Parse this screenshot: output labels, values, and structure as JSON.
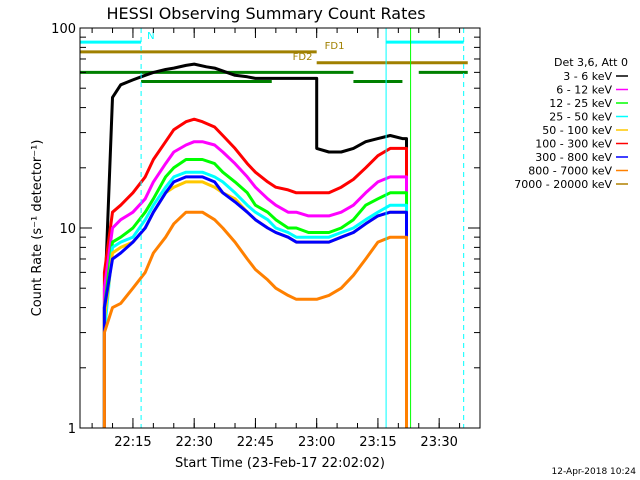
{
  "chart_data": {
    "type": "line",
    "title": "HESSI Observing Summary Count Rates",
    "xlabel": "Start Time (23-Feb-17 22:02:02)",
    "ylabel": "Count Rate (s⁻¹ detector⁻¹)",
    "y_scale": "log",
    "ylim": [
      1,
      100
    ],
    "y_ticks": [
      {
        "value": 1,
        "label": "1"
      },
      {
        "value": 10,
        "label": "10"
      },
      {
        "value": 100,
        "label": "100"
      }
    ],
    "xlim": [
      "22:02:02",
      "23:40:00"
    ],
    "x_ticks": [
      {
        "time": "22:15",
        "label": "22:15"
      },
      {
        "time": "22:30",
        "label": "22:30"
      },
      {
        "time": "22:45",
        "label": "22:45"
      },
      {
        "time": "23:00",
        "label": "23:00"
      },
      {
        "time": "23:15",
        "label": "23:15"
      },
      {
        "time": "23:30",
        "label": "23:30"
      }
    ],
    "legend_header": "Det 3,6, Att 0",
    "legend_placement": "right",
    "series": [
      {
        "name": "3 - 6 keV",
        "color": "#000000",
        "points": [
          [
            "22:08",
            1
          ],
          [
            "22:08",
            4
          ],
          [
            "22:10",
            45
          ],
          [
            "22:12",
            52
          ],
          [
            "22:15",
            55
          ],
          [
            "22:18",
            58
          ],
          [
            "22:20",
            60
          ],
          [
            "22:23",
            62
          ],
          [
            "22:25",
            63
          ],
          [
            "22:28",
            65
          ],
          [
            "22:30",
            66
          ],
          [
            "22:33",
            64
          ],
          [
            "22:35",
            63
          ],
          [
            "22:38",
            60
          ],
          [
            "22:40",
            58
          ],
          [
            "22:43",
            57
          ],
          [
            "22:45",
            56
          ],
          [
            "22:48",
            56
          ],
          [
            "22:50",
            56
          ],
          [
            "22:53",
            56
          ],
          [
            "22:55",
            56
          ],
          [
            "22:58",
            56
          ],
          [
            "23:00",
            56
          ],
          [
            "23:00",
            25
          ],
          [
            "23:03",
            24
          ],
          [
            "23:06",
            24
          ],
          [
            "23:09",
            25
          ],
          [
            "23:12",
            27
          ],
          [
            "23:15",
            28
          ],
          [
            "23:18",
            29
          ],
          [
            "23:21",
            28
          ],
          [
            "23:22",
            28
          ],
          [
            "23:22",
            1
          ]
        ]
      },
      {
        "name": "6 - 12 keV",
        "color": "#ff00ff",
        "points": [
          [
            "22:08",
            1
          ],
          [
            "22:08",
            5
          ],
          [
            "22:10",
            10
          ],
          [
            "22:12",
            11
          ],
          [
            "22:15",
            12
          ],
          [
            "22:18",
            14
          ],
          [
            "22:20",
            17
          ],
          [
            "22:23",
            21
          ],
          [
            "22:25",
            24
          ],
          [
            "22:28",
            26
          ],
          [
            "22:30",
            27
          ],
          [
            "22:32",
            27
          ],
          [
            "22:35",
            26
          ],
          [
            "22:37",
            24
          ],
          [
            "22:40",
            21
          ],
          [
            "22:43",
            18
          ],
          [
            "22:45",
            16
          ],
          [
            "22:48",
            14
          ],
          [
            "22:50",
            13
          ],
          [
            "22:53",
            12
          ],
          [
            "22:55",
            12
          ],
          [
            "22:58",
            11.5
          ],
          [
            "23:00",
            11.5
          ],
          [
            "23:03",
            11.5
          ],
          [
            "23:06",
            12
          ],
          [
            "23:09",
            13
          ],
          [
            "23:12",
            15
          ],
          [
            "23:15",
            17
          ],
          [
            "23:18",
            18
          ],
          [
            "23:21",
            18
          ],
          [
            "23:22",
            18
          ],
          [
            "23:22",
            1
          ]
        ]
      },
      {
        "name": "12 - 25 keV",
        "color": "#00ff00",
        "points": [
          [
            "22:08",
            1
          ],
          [
            "22:08",
            4
          ],
          [
            "22:10",
            8.5
          ],
          [
            "22:12",
            9
          ],
          [
            "22:15",
            10
          ],
          [
            "22:18",
            12
          ],
          [
            "22:20",
            14
          ],
          [
            "22:23",
            18
          ],
          [
            "22:25",
            20
          ],
          [
            "22:28",
            22
          ],
          [
            "22:30",
            22
          ],
          [
            "22:32",
            22
          ],
          [
            "22:35",
            21
          ],
          [
            "22:37",
            19
          ],
          [
            "22:40",
            17
          ],
          [
            "22:43",
            15
          ],
          [
            "22:45",
            13
          ],
          [
            "22:48",
            12
          ],
          [
            "22:50",
            11
          ],
          [
            "22:53",
            10
          ],
          [
            "22:55",
            10
          ],
          [
            "22:58",
            9.5
          ],
          [
            "23:00",
            9.5
          ],
          [
            "23:03",
            9.5
          ],
          [
            "23:06",
            10
          ],
          [
            "23:09",
            11
          ],
          [
            "23:12",
            13
          ],
          [
            "23:15",
            14
          ],
          [
            "23:18",
            15
          ],
          [
            "23:21",
            15
          ],
          [
            "23:22",
            15
          ],
          [
            "23:22",
            1
          ]
        ]
      },
      {
        "name": "25 - 50 keV",
        "color": "#00ffff",
        "points": [
          [
            "22:08",
            1
          ],
          [
            "22:08",
            3
          ],
          [
            "22:10",
            8
          ],
          [
            "22:12",
            8.5
          ],
          [
            "22:15",
            9
          ],
          [
            "22:18",
            11
          ],
          [
            "22:20",
            13
          ],
          [
            "22:23",
            16
          ],
          [
            "22:25",
            18
          ],
          [
            "22:28",
            19
          ],
          [
            "22:30",
            19
          ],
          [
            "22:32",
            19
          ],
          [
            "22:35",
            18
          ],
          [
            "22:37",
            17
          ],
          [
            "22:40",
            15
          ],
          [
            "22:43",
            13
          ],
          [
            "22:45",
            12
          ],
          [
            "22:48",
            11
          ],
          [
            "22:50",
            10
          ],
          [
            "22:53",
            9.5
          ],
          [
            "22:55",
            9
          ],
          [
            "22:58",
            9
          ],
          [
            "23:00",
            9
          ],
          [
            "23:03",
            9
          ],
          [
            "23:06",
            9.5
          ],
          [
            "23:09",
            10
          ],
          [
            "23:12",
            11
          ],
          [
            "23:15",
            12
          ],
          [
            "23:18",
            13
          ],
          [
            "23:21",
            13
          ],
          [
            "23:22",
            13
          ],
          [
            "23:22",
            1
          ]
        ]
      },
      {
        "name": "50 - 100 keV",
        "color": "#ffc800",
        "points": [
          [
            "22:08",
            1
          ],
          [
            "22:08",
            3.5
          ],
          [
            "22:10",
            7.5
          ],
          [
            "22:12",
            8
          ],
          [
            "22:15",
            8.5
          ],
          [
            "22:18",
            10
          ],
          [
            "22:20",
            12
          ],
          [
            "22:23",
            15
          ],
          [
            "22:25",
            16
          ],
          [
            "22:28",
            17
          ],
          [
            "22:30",
            17
          ],
          [
            "22:32",
            17
          ],
          [
            "22:35",
            16
          ],
          [
            "22:37",
            15
          ],
          [
            "22:40",
            14
          ],
          [
            "22:43",
            12
          ],
          [
            "22:45",
            11
          ],
          [
            "22:48",
            10
          ],
          [
            "22:50",
            9.5
          ],
          [
            "22:53",
            9
          ],
          [
            "22:55",
            8.5
          ],
          [
            "22:58",
            8.5
          ],
          [
            "23:00",
            8.5
          ],
          [
            "23:03",
            8.5
          ],
          [
            "23:06",
            9
          ],
          [
            "23:09",
            9.5
          ],
          [
            "23:12",
            10.5
          ],
          [
            "23:15",
            11.5
          ],
          [
            "23:18",
            12
          ],
          [
            "23:21",
            12
          ],
          [
            "23:22",
            12
          ],
          [
            "23:22",
            1
          ]
        ]
      },
      {
        "name": "100 - 300 keV",
        "color": "#ff0000",
        "points": [
          [
            "22:08",
            1
          ],
          [
            "22:08",
            6
          ],
          [
            "22:10",
            12
          ],
          [
            "22:12",
            13
          ],
          [
            "22:15",
            15
          ],
          [
            "22:18",
            18
          ],
          [
            "22:20",
            22
          ],
          [
            "22:23",
            27
          ],
          [
            "22:25",
            31
          ],
          [
            "22:28",
            34
          ],
          [
            "22:30",
            35
          ],
          [
            "22:32",
            34
          ],
          [
            "22:35",
            32
          ],
          [
            "22:37",
            29
          ],
          [
            "22:40",
            25
          ],
          [
            "22:43",
            21
          ],
          [
            "22:45",
            19
          ],
          [
            "22:48",
            17
          ],
          [
            "22:50",
            16
          ],
          [
            "22:53",
            15.5
          ],
          [
            "22:55",
            15
          ],
          [
            "22:58",
            15
          ],
          [
            "23:00",
            15
          ],
          [
            "23:03",
            15
          ],
          [
            "23:06",
            16
          ],
          [
            "23:09",
            17.5
          ],
          [
            "23:12",
            20
          ],
          [
            "23:15",
            23
          ],
          [
            "23:18",
            25
          ],
          [
            "23:21",
            25
          ],
          [
            "23:22",
            25
          ],
          [
            "23:22",
            1
          ]
        ]
      },
      {
        "name": "300 - 800 keV",
        "color": "#0000ff",
        "points": [
          [
            "22:08",
            1
          ],
          [
            "22:08",
            4
          ],
          [
            "22:10",
            7
          ],
          [
            "22:12",
            7.5
          ],
          [
            "22:15",
            8.5
          ],
          [
            "22:18",
            10
          ],
          [
            "22:20",
            12
          ],
          [
            "22:23",
            15
          ],
          [
            "22:25",
            17
          ],
          [
            "22:28",
            18
          ],
          [
            "22:30",
            18
          ],
          [
            "22:32",
            18
          ],
          [
            "22:35",
            17
          ],
          [
            "22:37",
            15
          ],
          [
            "22:40",
            13.5
          ],
          [
            "22:43",
            12
          ],
          [
            "22:45",
            11
          ],
          [
            "22:48",
            10
          ],
          [
            "22:50",
            9.5
          ],
          [
            "22:53",
            9
          ],
          [
            "22:55",
            8.5
          ],
          [
            "22:58",
            8.5
          ],
          [
            "23:00",
            8.5
          ],
          [
            "23:03",
            8.5
          ],
          [
            "23:06",
            9
          ],
          [
            "23:09",
            9.5
          ],
          [
            "23:12",
            10.5
          ],
          [
            "23:15",
            11.5
          ],
          [
            "23:18",
            12
          ],
          [
            "23:21",
            12
          ],
          [
            "23:22",
            12
          ],
          [
            "23:22",
            1
          ]
        ]
      },
      {
        "name": "800 - 7000 keV",
        "color": "#ff8000",
        "points": [
          [
            "22:08",
            1
          ],
          [
            "22:08",
            3
          ],
          [
            "22:10",
            4
          ],
          [
            "22:12",
            4.2
          ],
          [
            "22:15",
            5
          ],
          [
            "22:18",
            6
          ],
          [
            "22:20",
            7.5
          ],
          [
            "22:23",
            9
          ],
          [
            "22:25",
            10.5
          ],
          [
            "22:28",
            12
          ],
          [
            "22:30",
            12
          ],
          [
            "22:32",
            12
          ],
          [
            "22:35",
            11
          ],
          [
            "22:37",
            10
          ],
          [
            "22:40",
            8.5
          ],
          [
            "22:43",
            7
          ],
          [
            "22:45",
            6.2
          ],
          [
            "22:48",
            5.5
          ],
          [
            "22:50",
            5
          ],
          [
            "22:53",
            4.6
          ],
          [
            "22:55",
            4.4
          ],
          [
            "22:58",
            4.4
          ],
          [
            "23:00",
            4.4
          ],
          [
            "23:03",
            4.6
          ],
          [
            "23:06",
            5
          ],
          [
            "23:09",
            5.8
          ],
          [
            "23:12",
            7
          ],
          [
            "23:15",
            8.5
          ],
          [
            "23:18",
            9
          ],
          [
            "23:21",
            9
          ],
          [
            "23:22",
            9
          ],
          [
            "23:22",
            1
          ]
        ]
      },
      {
        "name": "7000 - 20000 keV",
        "color": "#b08000",
        "points": [
          [
            "22:08",
            1
          ],
          [
            "22:08",
            1
          ]
        ]
      }
    ],
    "vertical_markers": [
      {
        "time": "22:17",
        "color": "#00ffff",
        "style": "dashed"
      },
      {
        "time": "23:17",
        "color": "#00ffff",
        "style": "solid"
      },
      {
        "time": "23:23",
        "color": "#00ff00",
        "style": "solid"
      },
      {
        "time": "23:36",
        "color": "#00ffff",
        "style": "dashed"
      }
    ],
    "interval_bars": [
      {
        "label": "N",
        "color": "#00ffff",
        "value": 85,
        "segments": [
          [
            "22:02:02",
            "22:17"
          ],
          [
            "23:17",
            "23:36"
          ]
        ]
      },
      {
        "label": "FD1",
        "color": "#a08000",
        "value": 76,
        "segments": [
          [
            "22:02:02",
            "23:00"
          ]
        ]
      },
      {
        "label": "FD2",
        "color": "#a08000",
        "value": 67,
        "segments": [
          [
            "23:00",
            "23:37"
          ]
        ]
      },
      {
        "label": "",
        "color": "#008000",
        "value": 60,
        "segments": [
          [
            "22:02:02",
            "23:09"
          ],
          [
            "23:25",
            "23:37"
          ]
        ]
      },
      {
        "label": "",
        "color": "#008000",
        "value": 54,
        "segments": [
          [
            "22:17",
            "22:49"
          ],
          [
            "23:09",
            "23:21"
          ]
        ]
      }
    ]
  },
  "footer": {
    "timestamp": "12-Apr-2018 10:24"
  }
}
